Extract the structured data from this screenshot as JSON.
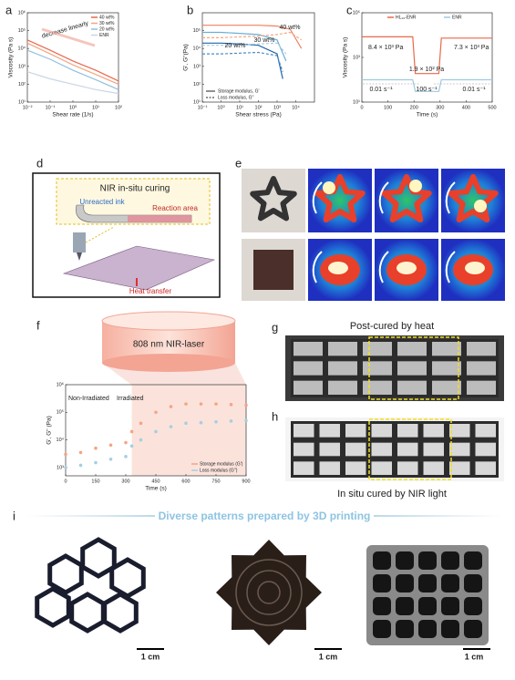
{
  "panel_labels": [
    "a",
    "b",
    "c",
    "d",
    "e",
    "f",
    "g",
    "h",
    "i"
  ],
  "chart_data": [
    {
      "type": "line",
      "xlabel": "Shear rate (1/s)",
      "ylabel": "Viscosity (Pa s)",
      "xscale": "log",
      "yscale": "log",
      "xlim": [
        0.01,
        100
      ],
      "ylim": [
        10,
        1000000
      ],
      "xticks": [
        {
          "value": 0.01,
          "label": "10⁻²"
        },
        {
          "value": 0.1,
          "label": "10⁻¹"
        },
        {
          "value": 1,
          "label": "10⁰"
        },
        {
          "value": 10,
          "label": "10¹"
        },
        {
          "value": 100,
          "label": "10²"
        }
      ],
      "yticks": [
        {
          "value": 10,
          "label": "10¹"
        },
        {
          "value": 100,
          "label": "10²"
        },
        {
          "value": 1000,
          "label": "10³"
        },
        {
          "value": 10000,
          "label": "10⁴"
        },
        {
          "value": 100000,
          "label": "10⁵"
        },
        {
          "value": 1000000,
          "label": "10⁶"
        }
      ],
      "annotations": [
        "decrease linearly"
      ],
      "series": [
        {
          "name": "40 wt%",
          "color": "#e8694a",
          "x": [
            0.01,
            0.1,
            1,
            10,
            100
          ],
          "values": [
            30000,
            8000,
            2000,
            600,
            150
          ]
        },
        {
          "name": "30 wt%",
          "color": "#f4a582",
          "x": [
            0.01,
            0.1,
            1,
            10,
            100
          ],
          "values": [
            20000,
            5000,
            1200,
            350,
            100
          ]
        },
        {
          "name": "20 wt%",
          "color": "#8fc1e0",
          "x": [
            0.01,
            0.1,
            1,
            10,
            100
          ],
          "values": [
            8000,
            2500,
            600,
            180,
            50
          ]
        },
        {
          "name": "ENR",
          "color": "#c9d6e3",
          "x": [
            0.01,
            0.1,
            1,
            10,
            100
          ],
          "values": [
            500,
            200,
            100,
            50,
            30
          ]
        }
      ]
    },
    {
      "type": "line",
      "xlabel": "Shear stress (Pa)",
      "ylabel": "G', G''(Pa)",
      "xscale": "log",
      "yscale": "log",
      "xlim": [
        0.1,
        100000
      ],
      "ylim": [
        10,
        1000000
      ],
      "xticks": [
        {
          "value": 0.1,
          "label": "10⁻¹"
        },
        {
          "value": 1,
          "label": "10⁰"
        },
        {
          "value": 10,
          "label": "10¹"
        },
        {
          "value": 100,
          "label": "10²"
        },
        {
          "value": 1000,
          "label": "10³"
        },
        {
          "value": 10000,
          "label": "10⁴"
        }
      ],
      "yticks": [
        {
          "value": 10,
          "label": "10¹"
        },
        {
          "value": 100,
          "label": "10²"
        },
        {
          "value": 1000,
          "label": "10³"
        },
        {
          "value": 10000,
          "label": "10⁴"
        },
        {
          "value": 100000,
          "label": "10⁵"
        }
      ],
      "annotations": [
        "40 wt%",
        "30 wt%",
        "20 wt%"
      ],
      "legend": [
        {
          "name": "Storage modulus, G'",
          "dash": false
        },
        {
          "name": "Loss modulus, G''",
          "dash": true
        }
      ],
      "series": [
        {
          "color": "#f08060",
          "dash": false,
          "x": [
            0.1,
            1,
            10,
            100,
            1000,
            5000,
            20000
          ],
          "values": [
            200000,
            200000,
            200000,
            200000,
            180000,
            120000,
            10000
          ]
        },
        {
          "color": "#6baed6",
          "dash": false,
          "x": [
            0.1,
            1,
            10,
            100,
            1000,
            3000
          ],
          "values": [
            80000,
            80000,
            70000,
            60000,
            30000,
            2000
          ]
        },
        {
          "color": "#2166ac",
          "dash": false,
          "x": [
            0.1,
            1,
            10,
            100,
            1000,
            2000
          ],
          "values": [
            20000,
            20000,
            18000,
            15000,
            5000,
            200
          ]
        },
        {
          "color": "#f4a582",
          "dash": true,
          "x": [
            0.1,
            1,
            10,
            100,
            1000,
            5000,
            20000
          ],
          "values": [
            40000,
            40000,
            45000,
            50000,
            60000,
            80000,
            30000
          ]
        },
        {
          "color": "#a6cee3",
          "dash": true,
          "x": [
            0.1,
            1,
            10,
            100,
            1000,
            3000
          ],
          "values": [
            15000,
            15000,
            16000,
            18000,
            20000,
            5000
          ]
        },
        {
          "color": "#4a8cc4",
          "dash": true,
          "x": [
            0.1,
            1,
            10,
            100,
            1000,
            2000
          ],
          "values": [
            5000,
            5000,
            5500,
            6000,
            4000,
            500
          ]
        }
      ]
    },
    {
      "type": "line",
      "xlabel": "Time (s)",
      "ylabel": "Viscosity (Pa s)",
      "xscale": "linear",
      "yscale": "log",
      "xlim": [
        0,
        500
      ],
      "ylim": [
        10,
        100000
      ],
      "xticks": [
        0,
        100,
        200,
        300,
        400,
        500
      ],
      "yticks": [
        {
          "value": 10,
          "label": "10¹"
        },
        {
          "value": 1000,
          "label": "10³"
        },
        {
          "value": 100000,
          "label": "10⁵"
        }
      ],
      "annotations": [
        "8.4 × 10³ Pa",
        "1.9 × 10² Pa",
        "7.3 × 10³ Pa",
        "0.01 s⁻¹",
        "100 s⁻¹",
        "0.01 s⁻¹"
      ],
      "series": [
        {
          "name": "HL₁₀-ENR",
          "color": "#e8694a",
          "x": [
            0,
            100,
            195,
            205,
            295,
            305,
            400,
            500
          ],
          "values": [
            8400,
            8400,
            8400,
            190,
            190,
            7300,
            7300,
            7300
          ]
        },
        {
          "name": "ENR",
          "color": "#9ecae1",
          "x": [
            0,
            100,
            195,
            205,
            295,
            305,
            400,
            500
          ],
          "values": [
            100,
            100,
            100,
            30,
            30,
            100,
            100,
            100
          ]
        }
      ]
    },
    {
      "type": "scatter",
      "xlabel": "Time (s)",
      "ylabel": "G', G'' (Pa)",
      "xscale": "linear",
      "yscale": "log",
      "xlim": [
        0,
        900
      ],
      "ylim": [
        500,
        1000000
      ],
      "xticks": [
        0,
        150,
        300,
        450,
        600,
        750,
        900
      ],
      "yticks": [
        {
          "value": 1000,
          "label": "10³"
        },
        {
          "value": 10000,
          "label": "10⁴"
        },
        {
          "value": 100000,
          "label": "10⁵"
        },
        {
          "value": 1000000,
          "label": "10⁶"
        }
      ],
      "highlight_xlim": [
        330,
        900
      ],
      "annotations": [
        "808 nm NIR-laser",
        "Non-Irradiated",
        "Irradiated"
      ],
      "series": [
        {
          "name": "Storage modulus (G')",
          "color": "#f4a582",
          "x": [
            0,
            75,
            150,
            225,
            300,
            330,
            375,
            450,
            525,
            600,
            675,
            750,
            825,
            900
          ],
          "values": [
            3000,
            3500,
            5000,
            6500,
            8000,
            20000,
            40000,
            100000,
            160000,
            200000,
            200000,
            200000,
            190000,
            180000
          ]
        },
        {
          "name": "Loss modulus (G'')",
          "color": "#a6cee3",
          "x": [
            0,
            75,
            150,
            225,
            300,
            330,
            375,
            450,
            525,
            600,
            675,
            750,
            825,
            900
          ],
          "values": [
            1000,
            1200,
            1500,
            2000,
            2500,
            6000,
            10000,
            20000,
            30000,
            40000,
            42000,
            45000,
            48000,
            50000
          ]
        }
      ]
    }
  ],
  "panels": {
    "d": {
      "title": "NIR in-situ curing",
      "labels": [
        "Unreacted ink",
        "Reaction area",
        "Heat transfer"
      ]
    },
    "g": {
      "title": "Post-cured by heat"
    },
    "h": {
      "title": "In situ cured by NIR light"
    },
    "i": {
      "title": "Diverse patterns prepared by 3D printing",
      "scale_bars": [
        "1 cm",
        "1 cm",
        "1 cm"
      ]
    }
  }
}
